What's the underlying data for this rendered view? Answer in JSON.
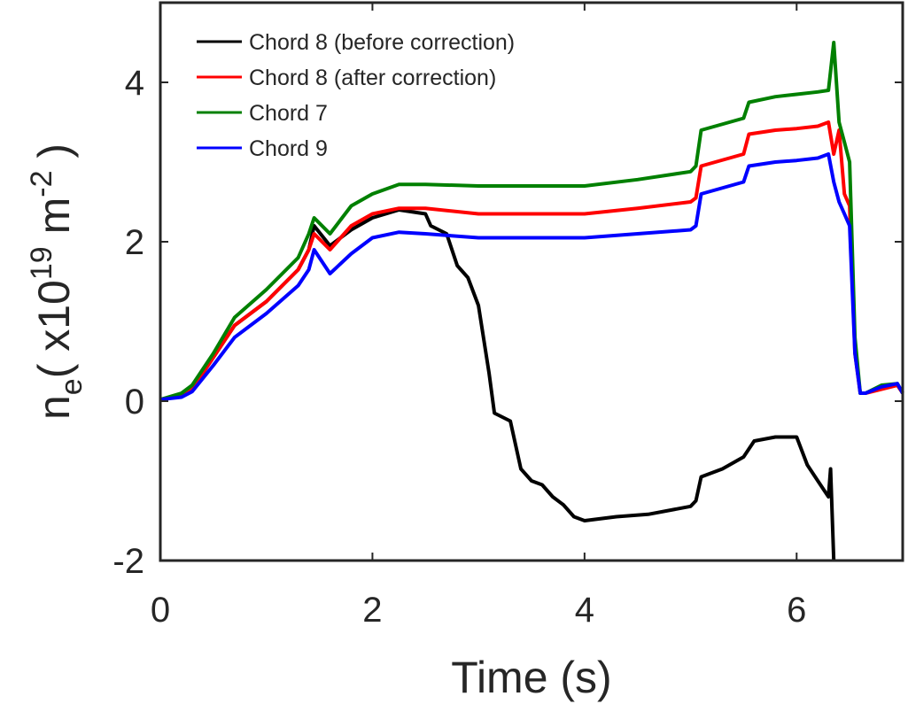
{
  "chart_data": {
    "type": "line",
    "xlabel": "Time (s)",
    "ylabel": {
      "n": "n",
      "sub": "e",
      "open": "( x10",
      "sup1": "19",
      "unit": " m",
      "sup2": "-2",
      "close": " )"
    },
    "xlim": [
      0,
      7
    ],
    "ylim": [
      -2,
      5
    ],
    "xticks": [
      0,
      2,
      4,
      6
    ],
    "yticks": [
      -2,
      0,
      2,
      4
    ],
    "legend_position": "top-left",
    "grid": false,
    "series": [
      {
        "name": "Chord 8 (before correction)",
        "color": "#000000",
        "x": [
          0,
          0.2,
          0.3,
          0.5,
          0.7,
          1.0,
          1.3,
          1.4,
          1.45,
          1.6,
          1.8,
          2.0,
          2.25,
          2.5,
          2.55,
          2.7,
          2.8,
          2.9,
          3.0,
          3.1,
          3.15,
          3.3,
          3.4,
          3.5,
          3.6,
          3.7,
          3.8,
          3.9,
          4.0,
          4.3,
          4.6,
          5.0,
          5.05,
          5.1,
          5.3,
          5.5,
          5.6,
          5.8,
          6.0,
          6.1,
          6.2,
          6.3,
          6.32,
          6.35
        ],
        "y": [
          0.02,
          0.08,
          0.15,
          0.55,
          0.95,
          1.25,
          1.65,
          1.9,
          2.2,
          1.95,
          2.15,
          2.3,
          2.4,
          2.35,
          2.2,
          2.1,
          1.7,
          1.55,
          1.2,
          0.35,
          -0.15,
          -0.25,
          -0.85,
          -1.0,
          -1.05,
          -1.2,
          -1.3,
          -1.45,
          -1.5,
          -1.45,
          -1.42,
          -1.32,
          -1.25,
          -0.95,
          -0.85,
          -0.7,
          -0.5,
          -0.45,
          -0.45,
          -0.8,
          -1.0,
          -1.2,
          -0.85,
          -2.0
        ]
      },
      {
        "name": "Chord 8 (after correction)",
        "color": "#ff0000",
        "x": [
          0,
          0.2,
          0.3,
          0.5,
          0.7,
          1.0,
          1.3,
          1.4,
          1.45,
          1.6,
          1.8,
          2.0,
          2.25,
          2.5,
          3.0,
          3.5,
          4.0,
          4.5,
          5.0,
          5.05,
          5.1,
          5.5,
          5.55,
          5.8,
          6.0,
          6.2,
          6.3,
          6.35,
          6.4,
          6.45,
          6.5,
          6.55,
          6.6,
          6.65,
          6.8,
          6.95,
          7.0
        ],
        "y": [
          0.02,
          0.08,
          0.15,
          0.55,
          0.95,
          1.25,
          1.65,
          1.9,
          2.1,
          1.9,
          2.2,
          2.35,
          2.42,
          2.42,
          2.35,
          2.35,
          2.35,
          2.42,
          2.5,
          2.55,
          2.95,
          3.1,
          3.35,
          3.4,
          3.42,
          3.45,
          3.5,
          3.1,
          3.4,
          2.6,
          2.45,
          0.6,
          0.1,
          0.1,
          0.15,
          0.2,
          0.1
        ]
      },
      {
        "name": "Chord 7",
        "color": "#008000",
        "x": [
          0,
          0.2,
          0.3,
          0.5,
          0.7,
          1.0,
          1.3,
          1.4,
          1.45,
          1.6,
          1.8,
          2.0,
          2.25,
          2.5,
          3.0,
          3.5,
          4.0,
          4.5,
          5.0,
          5.05,
          5.1,
          5.5,
          5.55,
          5.8,
          6.0,
          6.2,
          6.3,
          6.35,
          6.4,
          6.45,
          6.5,
          6.55,
          6.6,
          6.65,
          6.8,
          6.95,
          7.0
        ],
        "y": [
          0.02,
          0.1,
          0.2,
          0.6,
          1.05,
          1.4,
          1.8,
          2.1,
          2.3,
          2.1,
          2.45,
          2.6,
          2.72,
          2.72,
          2.7,
          2.7,
          2.7,
          2.78,
          2.88,
          2.95,
          3.4,
          3.55,
          3.75,
          3.82,
          3.85,
          3.88,
          3.9,
          4.5,
          3.5,
          3.25,
          3.0,
          0.8,
          0.1,
          0.1,
          0.2,
          0.22,
          0.1
        ]
      },
      {
        "name": "Chord 9",
        "color": "#0000ff",
        "x": [
          0,
          0.2,
          0.3,
          0.5,
          0.7,
          1.0,
          1.3,
          1.4,
          1.45,
          1.6,
          1.8,
          2.0,
          2.25,
          2.5,
          3.0,
          3.5,
          4.0,
          4.5,
          5.0,
          5.05,
          5.1,
          5.5,
          5.55,
          5.8,
          6.0,
          6.2,
          6.3,
          6.35,
          6.4,
          6.45,
          6.5,
          6.55,
          6.6,
          6.65,
          6.8,
          6.95,
          7.0
        ],
        "y": [
          0.02,
          0.05,
          0.12,
          0.45,
          0.8,
          1.1,
          1.45,
          1.65,
          1.9,
          1.6,
          1.85,
          2.05,
          2.12,
          2.1,
          2.05,
          2.05,
          2.05,
          2.1,
          2.15,
          2.2,
          2.6,
          2.75,
          2.95,
          3.0,
          3.02,
          3.05,
          3.1,
          2.75,
          2.5,
          2.35,
          2.2,
          0.6,
          0.1,
          0.1,
          0.18,
          0.22,
          0.1
        ]
      }
    ]
  }
}
